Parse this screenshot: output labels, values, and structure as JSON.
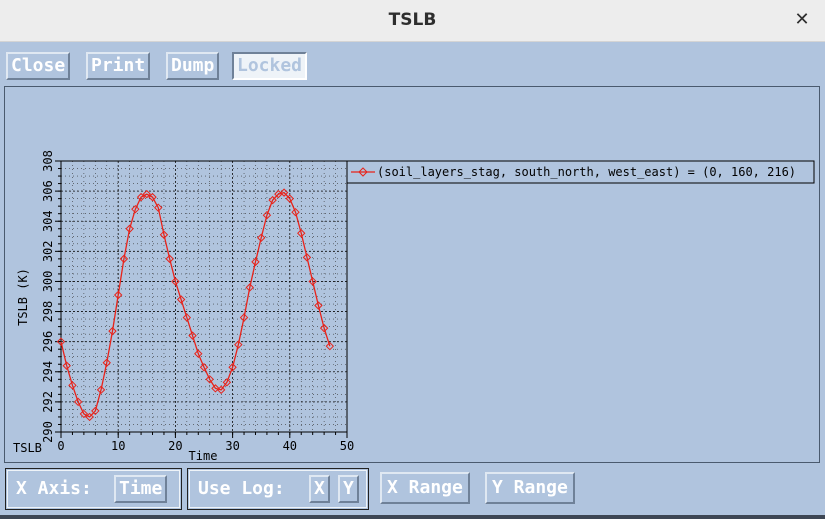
{
  "window": {
    "title": "TSLB"
  },
  "toolbar": {
    "close_label": "Close",
    "print_label": "Print",
    "dump_label": "Dump",
    "locked_label": "Locked"
  },
  "plot_panel": {
    "corner_label": "TSLB"
  },
  "chart_data": {
    "type": "line",
    "xlabel": "Time",
    "ylabel": "TSLB (K)",
    "xlim": [
      0,
      50
    ],
    "ylim": [
      290,
      308
    ],
    "xticks": [
      0,
      10,
      20,
      30,
      40,
      50
    ],
    "yticks": [
      290,
      292,
      294,
      296,
      298,
      300,
      302,
      304,
      306,
      308
    ],
    "grid": true,
    "legend_position": "right",
    "series": [
      {
        "name": "(soil_layers_stag, south_north, west_east) = (0, 160, 216)",
        "color": "#e8231a",
        "marker": "diamond",
        "x": [
          0,
          1,
          2,
          3,
          4,
          5,
          6,
          7,
          8,
          9,
          10,
          11,
          12,
          13,
          14,
          15,
          16,
          17,
          18,
          19,
          20,
          21,
          22,
          23,
          24,
          25,
          26,
          27,
          28,
          29,
          30,
          31,
          32,
          33,
          34,
          35,
          36,
          37,
          38,
          39,
          40,
          41,
          42,
          43,
          44,
          45,
          46,
          47
        ],
        "y": [
          296.0,
          294.4,
          293.1,
          292.0,
          291.2,
          291.0,
          291.4,
          292.8,
          294.6,
          296.7,
          299.1,
          301.5,
          303.5,
          304.8,
          305.6,
          305.8,
          305.6,
          304.9,
          303.1,
          301.5,
          300.0,
          298.8,
          297.6,
          296.4,
          295.2,
          294.3,
          293.5,
          292.9,
          292.8,
          293.3,
          294.3,
          295.8,
          297.6,
          299.6,
          301.3,
          302.9,
          304.4,
          305.4,
          305.8,
          305.9,
          305.5,
          304.6,
          303.2,
          301.6,
          300.0,
          298.4,
          296.9,
          295.7
        ]
      }
    ]
  },
  "bottom_bar": {
    "x_axis_label": "X Axis:",
    "x_axis_value": "Time",
    "use_log_label": "Use Log:",
    "log_x_label": "X",
    "log_y_label": "Y",
    "x_range_label": "X Range",
    "y_range_label": "Y Range"
  }
}
